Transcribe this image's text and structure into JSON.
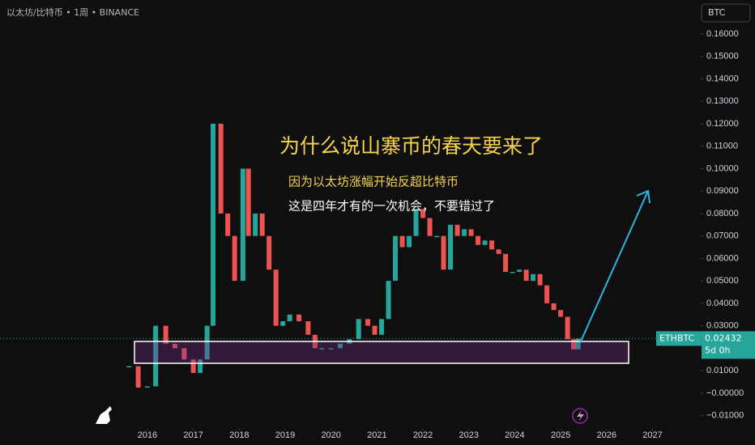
{
  "header": "以太坊/比特币 • 1周 • BINANCE",
  "button": "BTC",
  "annotations": {
    "title": "为什么说山寨币的春天要来了",
    "line1": "因为以太坊涨幅开始反超比特币",
    "line2": "这是四年才有的一次机会，不要错过了"
  },
  "chart_data": {
    "type": "bar-line",
    "countdown": "5d 0h",
    "x": [
      2015.6,
      2015.8,
      2016.0,
      2016.18,
      2016.4,
      2016.6,
      2016.8,
      2017.0,
      2017.15,
      2017.3,
      2017.43,
      2017.6,
      2017.75,
      2017.9,
      2018.08,
      2018.2,
      2018.35,
      2018.5,
      2018.65,
      2018.8,
      2018.95,
      2019.1,
      2019.3,
      2019.5,
      2019.65,
      2019.8,
      2020.0,
      2020.2,
      2020.4,
      2020.6,
      2020.8,
      2020.95,
      2021.1,
      2021.25,
      2021.4,
      2021.55,
      2021.7,
      2021.85,
      2022.0,
      2022.15,
      2022.3,
      2022.45,
      2022.6,
      2022.75,
      2022.9,
      2023.05,
      2023.2,
      2023.35,
      2023.5,
      2023.65,
      2023.8,
      2023.95,
      2024.1,
      2024.25,
      2024.4,
      2024.55,
      2024.7,
      2024.85,
      2025.0,
      2025.15,
      2025.28,
      2025.38
    ],
    "series": [
      {
        "name": "ETHBTC",
        "up_color": "#26a69a",
        "down_color": "#ef5350",
        "values": [
          0.012,
          0.0025,
          0.003,
          0.03,
          0.022,
          0.02,
          0.015,
          0.009,
          0.015,
          0.03,
          0.12,
          0.08,
          0.07,
          0.05,
          0.1,
          0.07,
          0.08,
          0.07,
          0.055,
          0.03,
          0.032,
          0.035,
          0.032,
          0.026,
          0.02,
          0.02,
          0.02,
          0.022,
          0.024,
          0.033,
          0.03,
          0.026,
          0.033,
          0.05,
          0.07,
          0.065,
          0.07,
          0.082,
          0.078,
          0.07,
          0.07,
          0.055,
          0.075,
          0.07,
          0.073,
          0.07,
          0.066,
          0.068,
          0.064,
          0.062,
          0.054,
          0.054,
          0.055,
          0.05,
          0.053,
          0.048,
          0.04,
          0.037,
          0.034,
          0.024,
          0.0195,
          0.02432
        ]
      }
    ],
    "xlim": [
      2012.79,
      2028.05
    ],
    "ylim": [
      -0.0159,
      0.1751
    ],
    "xticks": [
      2016,
      2017,
      2018,
      2019,
      2020,
      2021,
      2022,
      2023,
      2024,
      2025,
      2026,
      2027
    ],
    "yticks": [
      {
        "value": 0.16,
        "label": "0.16000"
      },
      {
        "value": 0.15,
        "label": "0.15000"
      },
      {
        "value": 0.14,
        "label": "0.14000"
      },
      {
        "value": 0.13,
        "label": "0.13000"
      },
      {
        "value": 0.12,
        "label": "0.12000"
      },
      {
        "value": 0.11,
        "label": "0.11000"
      },
      {
        "value": 0.1,
        "label": "0.10000"
      },
      {
        "value": 0.09,
        "label": "0.09000"
      },
      {
        "value": 0.08,
        "label": "0.08000"
      },
      {
        "value": 0.07,
        "label": "0.07000"
      },
      {
        "value": 0.06,
        "label": "0.06000"
      },
      {
        "value": 0.05,
        "label": "0.05000"
      },
      {
        "value": 0.04,
        "label": "0.04000"
      },
      {
        "value": 0.03,
        "label": "0.03000"
      },
      {
        "value": 0.01,
        "label": "0.01000"
      },
      {
        "value": 0,
        "label": "−0.00000"
      },
      {
        "value": -0.01,
        "label": "−0.01000"
      }
    ]
  }
}
